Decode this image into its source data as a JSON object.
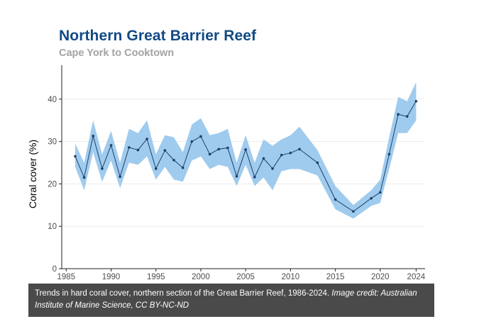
{
  "header": {
    "title": "Northern Great Barrier Reef",
    "subtitle": "Cape York to Cooktown"
  },
  "caption": {
    "text": "Trends in hard coral cover, northern section of the Great Barrier Reef, 1986-2024.",
    "credit": "Image credit: Australian Institute of Marine Science, CC BY-NC-ND"
  },
  "colors": {
    "title": "#114a85",
    "subtitle": "#a3a3a3",
    "band": "#9fcbee",
    "line": "#1f3f66",
    "caption_bg": "#4a4a4a"
  },
  "chart_data": {
    "type": "line",
    "title": "Northern Great Barrier Reef",
    "subtitle": "Cape York to Cooktown",
    "xlabel": "",
    "ylabel": "Coral cover (%)",
    "xlim": [
      1984.5,
      2025
    ],
    "ylim": [
      0,
      48
    ],
    "xticks": [
      1985,
      1990,
      1995,
      2000,
      2005,
      2010,
      2015,
      2020,
      2024
    ],
    "yticks": [
      0,
      10,
      20,
      30,
      40
    ],
    "grid": true,
    "series": [
      {
        "x": [
          1986,
          1987,
          1988,
          1989,
          1990,
          1991,
          1992,
          1993,
          1994,
          1995,
          1996,
          1997,
          1998,
          1999,
          2000,
          2001,
          2002,
          2003,
          2004,
          2005,
          2006,
          2007,
          2008,
          2009,
          2010,
          2011,
          2013,
          2015,
          2017,
          2019,
          2020,
          2021,
          2022,
          2023,
          2024
        ],
        "values": [
          26.5,
          21.5,
          31.3,
          23.6,
          29.1,
          21.7,
          28.6,
          28.0,
          30.6,
          23.6,
          27.9,
          25.6,
          23.8,
          30.0,
          31.2,
          27.0,
          28.2,
          28.5,
          21.8,
          28.1,
          21.6,
          26.0,
          23.6,
          26.8,
          27.3,
          28.2,
          25.0,
          16.3,
          13.5,
          16.6,
          18.0,
          27.0,
          36.4,
          35.9,
          39.5
        ],
        "lower": [
          24.0,
          18.5,
          27.5,
          20.5,
          25.5,
          19.0,
          25.0,
          24.5,
          26.5,
          21.0,
          24.0,
          21.0,
          20.5,
          25.5,
          26.5,
          23.5,
          24.5,
          24.0,
          19.5,
          24.5,
          19.5,
          21.5,
          18.5,
          23.0,
          23.5,
          23.5,
          22.0,
          14.0,
          11.8,
          14.8,
          15.5,
          23.5,
          32.0,
          32.0,
          35.0
        ],
        "upper": [
          29.5,
          25.0,
          35.0,
          27.0,
          32.5,
          25.0,
          33.0,
          32.0,
          35.0,
          27.0,
          31.5,
          31.0,
          27.5,
          34.0,
          35.5,
          31.5,
          32.0,
          33.0,
          25.0,
          31.5,
          25.0,
          30.5,
          29.0,
          30.5,
          31.5,
          33.5,
          28.0,
          19.5,
          15.0,
          18.5,
          21.0,
          31.0,
          40.5,
          39.5,
          44.0
        ]
      }
    ]
  }
}
